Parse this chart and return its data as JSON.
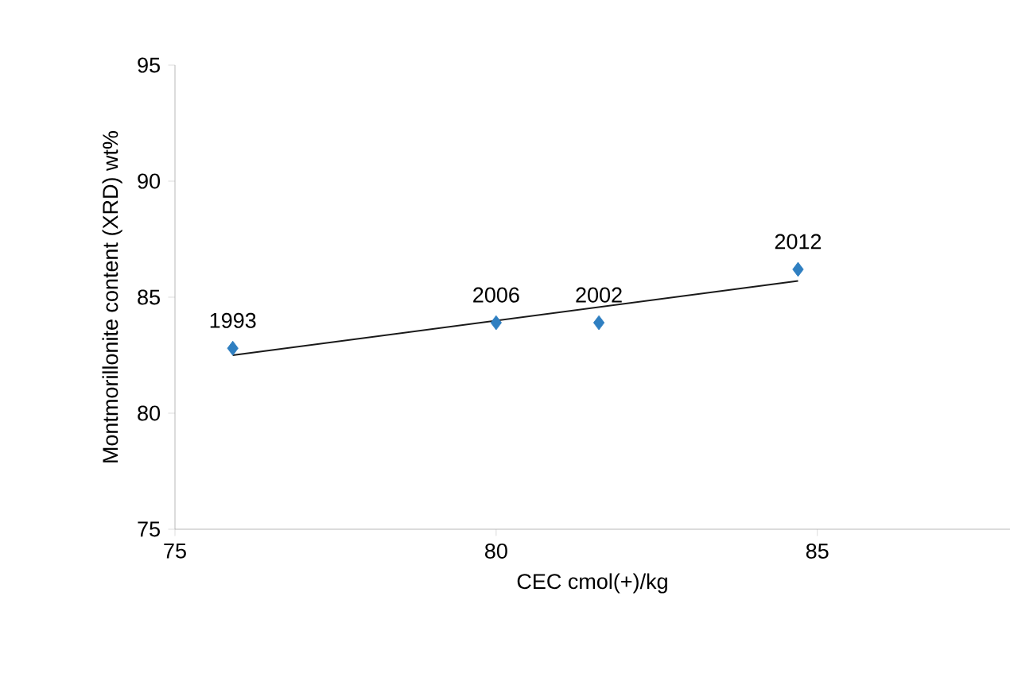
{
  "chart_data": {
    "type": "scatter",
    "xlabel": "CEC cmol(+)/kg",
    "ylabel": "Montmorillonite content (XRD)  wt%",
    "xlim": [
      75,
      88
    ],
    "xticks": [
      75,
      80,
      85
    ],
    "ylim": [
      75,
      95
    ],
    "yticks": [
      75,
      80,
      85,
      90,
      95
    ],
    "series": [
      {
        "color": "#2f7fc1",
        "marker": "diamond",
        "x": [
          75.9,
          80.0,
          81.6,
          84.7
        ],
        "values": [
          82.8,
          83.9,
          83.9,
          86.2
        ]
      },
      {
        "type": "line",
        "color": "#1a1a1a",
        "x": [
          75.9,
          84.7
        ],
        "values": [
          82.5,
          85.7
        ]
      }
    ],
    "annotations": [
      {
        "text": "1993",
        "x": 75.9,
        "y": 82.8
      },
      {
        "text": "2006",
        "x": 80.0,
        "y": 83.9
      },
      {
        "text": "2002",
        "x": 81.6,
        "y": 83.9
      },
      {
        "text": "2012",
        "x": 84.7,
        "y": 86.2
      }
    ]
  }
}
